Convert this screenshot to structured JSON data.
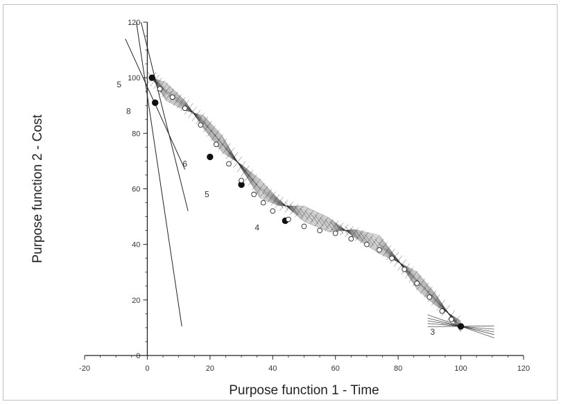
{
  "chart_data": {
    "type": "scatter",
    "xlabel": "Purpose function 1 - Time",
    "ylabel": "Purpose function 2 - Cost",
    "xlim": [
      -20,
      120
    ],
    "ylim": [
      0,
      120
    ],
    "xticks": [
      -20,
      0,
      20,
      40,
      60,
      80,
      100,
      120
    ],
    "yticks": [
      0,
      20,
      40,
      60,
      80,
      100,
      120
    ],
    "tick_labels_x": [
      "-20",
      "0",
      "20",
      "40",
      "60",
      "80",
      "100",
      "120"
    ],
    "tick_labels_y": [
      "0",
      "20",
      "40",
      "60",
      "80",
      "100",
      "120"
    ],
    "grid": false,
    "series": [
      {
        "marker": "filled-circle",
        "x": [
          1.5,
          2.5,
          20,
          30,
          44,
          100
        ],
        "y": [
          100,
          91,
          71.5,
          61.5,
          48.5,
          10.5
        ]
      },
      {
        "marker": "open-circle",
        "x": [
          4,
          8,
          12,
          17,
          22,
          26,
          30,
          34,
          37,
          40,
          45,
          50,
          55,
          60,
          65,
          70,
          74,
          78,
          82,
          86,
          90,
          94,
          97
        ],
        "y": [
          96,
          93,
          89,
          83,
          76,
          69,
          63,
          58,
          55,
          52,
          49,
          46.5,
          45,
          44,
          42,
          40,
          38,
          35,
          31,
          26,
          21,
          16,
          13
        ]
      }
    ],
    "annotations": [
      {
        "text": "5",
        "x": -9,
        "y": 96.5
      },
      {
        "text": "8",
        "x": -6,
        "y": 87
      },
      {
        "text": "6",
        "x": 12,
        "y": 68
      },
      {
        "text": "5",
        "x": 19,
        "y": 57
      },
      {
        "text": "4",
        "x": 35,
        "y": 45
      },
      {
        "text": "3",
        "x": 91,
        "y": 7.5
      }
    ]
  }
}
